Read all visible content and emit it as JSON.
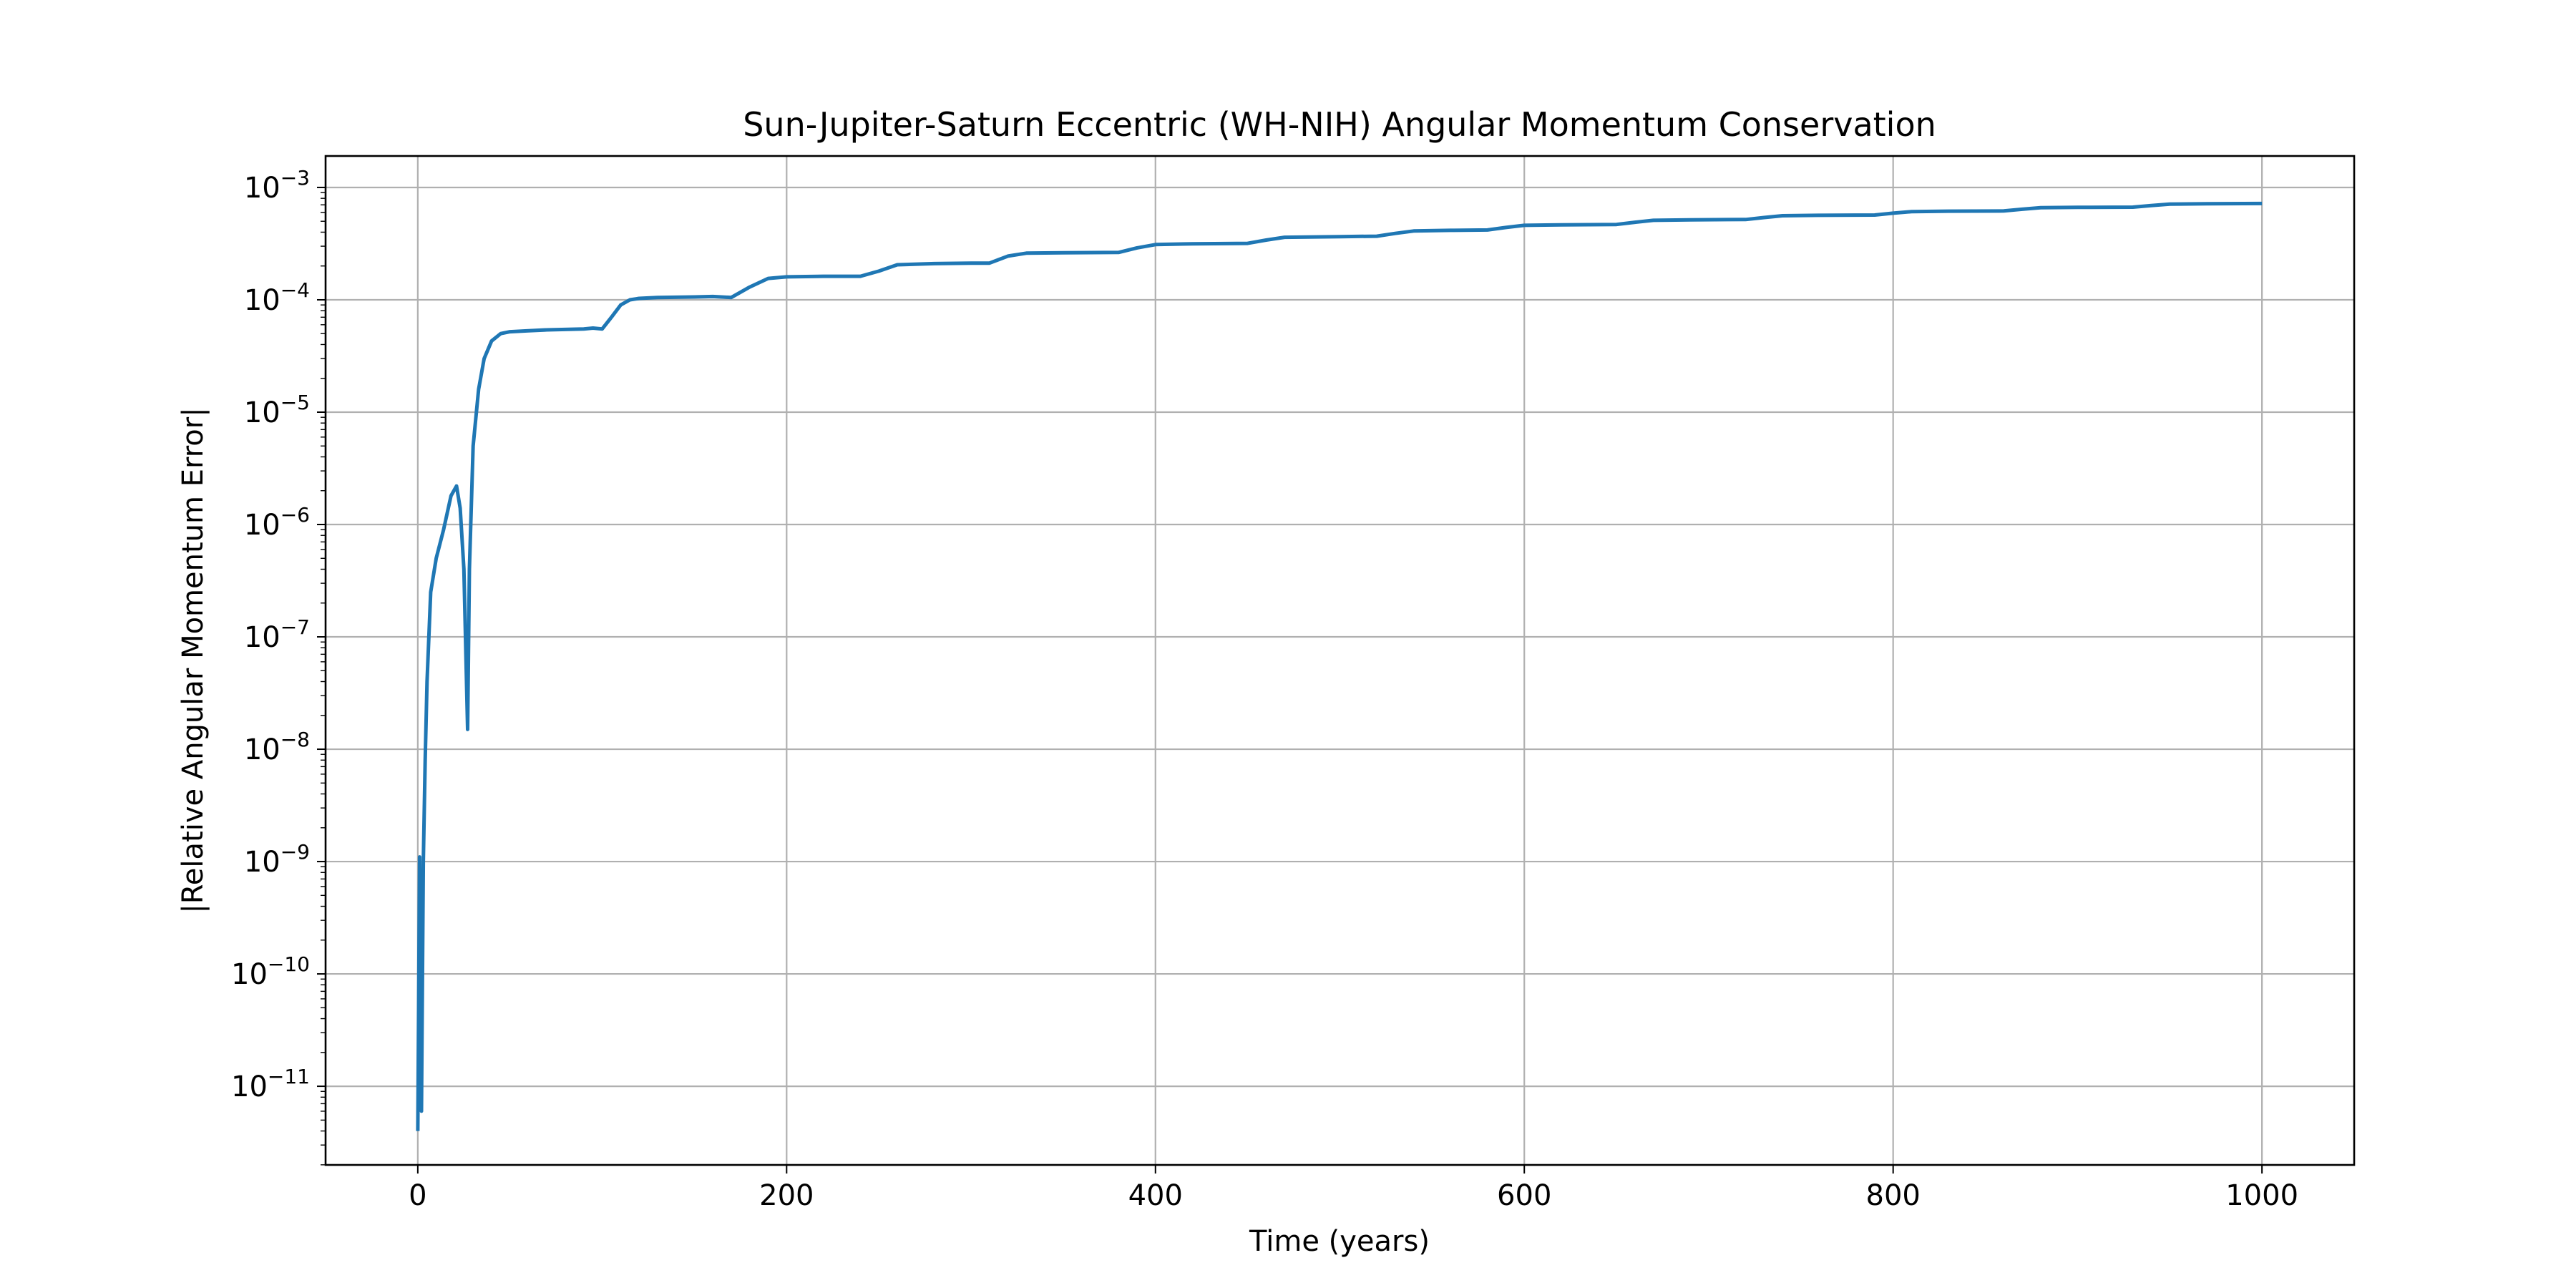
{
  "chart_data": {
    "type": "line",
    "title": "Sun-Jupiter-Saturn Eccentric (WH-NIH) Angular Momentum Conservation",
    "xlabel": "Time (years)",
    "ylabel": "|Relative Angular Momentum Error|",
    "yscale": "log",
    "grid": true,
    "xlim": [
      -50,
      1050
    ],
    "ylim_exponent": [
      -11.7,
      -2.72
    ],
    "xticks": [
      {
        "value": 0,
        "label": "0"
      },
      {
        "value": 200,
        "label": "200"
      },
      {
        "value": 400,
        "label": "400"
      },
      {
        "value": 600,
        "label": "600"
      },
      {
        "value": 800,
        "label": "800"
      },
      {
        "value": 1000,
        "label": "1000"
      }
    ],
    "yticks": [
      {
        "exponent": -3,
        "base": "10",
        "power": "−3"
      },
      {
        "exponent": -4,
        "base": "10",
        "power": "−4"
      },
      {
        "exponent": -5,
        "base": "10",
        "power": "−5"
      },
      {
        "exponent": -6,
        "base": "10",
        "power": "−6"
      },
      {
        "exponent": -7,
        "base": "10",
        "power": "−7"
      },
      {
        "exponent": -8,
        "base": "10",
        "power": "−8"
      },
      {
        "exponent": -9,
        "base": "10",
        "power": "−9"
      },
      {
        "exponent": -10,
        "base": "10",
        "power": "−10"
      },
      {
        "exponent": -11,
        "base": "10",
        "power": "−11"
      }
    ],
    "series": [
      {
        "color": "#1f77b4",
        "x": [
          0,
          1,
          2,
          3,
          4,
          5,
          7,
          10,
          14,
          18,
          21,
          23,
          25,
          27,
          28,
          30,
          33,
          36,
          40,
          45,
          50,
          60,
          70,
          80,
          90,
          95,
          100,
          105,
          110,
          115,
          120,
          130,
          150,
          160,
          170,
          180,
          190,
          200,
          220,
          240,
          250,
          260,
          280,
          300,
          310,
          320,
          330,
          350,
          380,
          390,
          400,
          420,
          450,
          460,
          470,
          500,
          520,
          530,
          540,
          560,
          580,
          590,
          600,
          620,
          650,
          660,
          670,
          690,
          720,
          730,
          740,
          760,
          790,
          800,
          810,
          830,
          860,
          870,
          880,
          900,
          930,
          940,
          950,
          970,
          1000
        ],
        "y": [
          4e-12,
          1.1e-09,
          6e-12,
          1e-09,
          8e-09,
          4e-08,
          2.5e-07,
          5e-07,
          9e-07,
          1.8e-06,
          2.2e-06,
          1.4e-06,
          4e-07,
          1.5e-08,
          4e-07,
          5e-06,
          1.6e-05,
          3e-05,
          4.3e-05,
          5e-05,
          5.2e-05,
          5.3e-05,
          5.4e-05,
          5.45e-05,
          5.5e-05,
          5.6e-05,
          5.5e-05,
          7e-05,
          9e-05,
          0.0001,
          0.000103,
          0.000105,
          0.000106,
          0.000107,
          0.000105,
          0.00013,
          0.000155,
          0.00016,
          0.000162,
          0.000162,
          0.00018,
          0.000205,
          0.00021,
          0.000212,
          0.000212,
          0.000245,
          0.00026,
          0.000262,
          0.000264,
          0.00029,
          0.00031,
          0.000315,
          0.000318,
          0.00034,
          0.00036,
          0.000365,
          0.000368,
          0.00039,
          0.00041,
          0.000415,
          0.000418,
          0.00044,
          0.00046,
          0.000465,
          0.000468,
          0.00049,
          0.00051,
          0.000515,
          0.000518,
          0.00054,
          0.00056,
          0.000565,
          0.000568,
          0.00059,
          0.00061,
          0.000615,
          0.000618,
          0.00064,
          0.00066,
          0.000665,
          0.000668,
          0.00069,
          0.00071,
          0.000715,
          0.00072
        ]
      }
    ]
  }
}
